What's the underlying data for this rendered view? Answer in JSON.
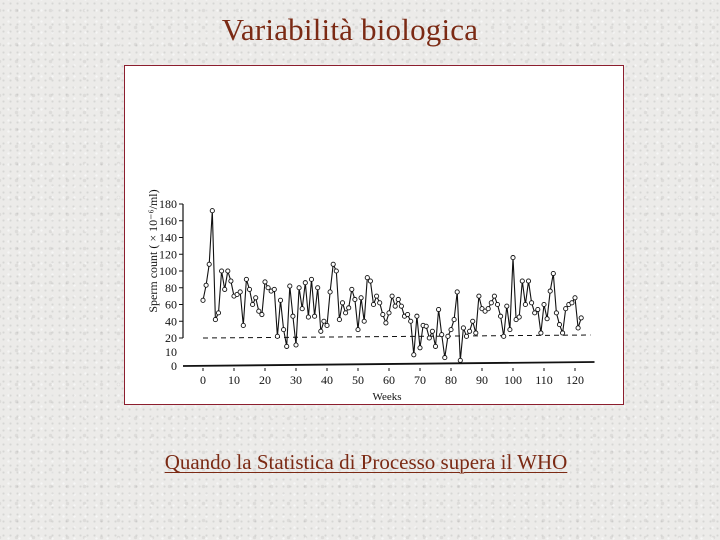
{
  "slide": {
    "title": "Variabilità biologica",
    "caption": "Quando la Statistica di Processo supera il WHO"
  },
  "colors": {
    "title": "#7b2a14",
    "frame": "#8c1e2e",
    "ink": "#111111"
  },
  "chart_data": {
    "type": "line",
    "title": "",
    "xlabel": "Weeks",
    "ylabel": "Sperm count ( × 10⁻⁶/ml)",
    "xlim": [
      0,
      125
    ],
    "ylim": [
      0,
      180
    ],
    "xticks": [
      0,
      10,
      20,
      30,
      40,
      50,
      60,
      70,
      80,
      90,
      100,
      110,
      120
    ],
    "yticks": [
      0,
      10,
      20,
      40,
      60,
      80,
      100,
      120,
      140,
      160,
      180
    ],
    "grid": false,
    "reference_lines": [
      {
        "y": 20,
        "style": "dashed",
        "x_range": [
          0,
          125
        ]
      }
    ],
    "series": [
      {
        "marker": "open-circle",
        "x": [
          0,
          1,
          2,
          3,
          4,
          5,
          6,
          7,
          8,
          9,
          10,
          11,
          12,
          13,
          14,
          15,
          16,
          17,
          18,
          19,
          20,
          21,
          22,
          23,
          24,
          25,
          26,
          27,
          28,
          29,
          30,
          31,
          32,
          33,
          34,
          35,
          36,
          37,
          38,
          39,
          40,
          41,
          42,
          43,
          44,
          45,
          46,
          47,
          48,
          49,
          50,
          51,
          52,
          53,
          54,
          55,
          56,
          57,
          58,
          59,
          60,
          61,
          62,
          63,
          64,
          65,
          66,
          67,
          68,
          69,
          70,
          71,
          72,
          73,
          74,
          75,
          76,
          77,
          78,
          79,
          80,
          81,
          82,
          83,
          84,
          85,
          86,
          87,
          88,
          89,
          90,
          91,
          92,
          93,
          94,
          95,
          96,
          97,
          98,
          99,
          100,
          101,
          102,
          103,
          104,
          105,
          106,
          107,
          108,
          109,
          110,
          111,
          112,
          113,
          114,
          115,
          116,
          117,
          118,
          119,
          120,
          121,
          122
        ],
        "values": [
          65,
          83,
          108,
          172,
          42,
          50,
          100,
          78,
          100,
          88,
          70,
          72,
          75,
          35,
          90,
          78,
          60,
          68,
          52,
          48,
          87,
          80,
          76,
          78,
          22,
          65,
          30,
          14,
          82,
          46,
          15,
          80,
          55,
          86,
          45,
          90,
          46,
          80,
          28,
          40,
          35,
          75,
          108,
          100,
          42,
          62,
          50,
          56,
          78,
          66,
          30,
          68,
          40,
          92,
          88,
          60,
          70,
          62,
          48,
          38,
          50,
          70,
          58,
          66,
          58,
          46,
          48,
          40,
          8,
          46,
          13,
          35,
          34,
          20,
          28,
          14,
          54,
          24,
          6,
          22,
          30,
          42,
          75,
          4,
          32,
          22,
          28,
          40,
          26,
          70,
          55,
          52,
          55,
          62,
          70,
          60,
          46,
          22,
          58,
          30,
          116,
          42,
          45,
          88,
          60,
          88,
          62,
          50,
          54,
          26,
          60,
          43,
          76,
          97,
          50,
          36,
          26,
          55,
          60,
          62,
          68,
          32,
          44
        ]
      }
    ]
  }
}
